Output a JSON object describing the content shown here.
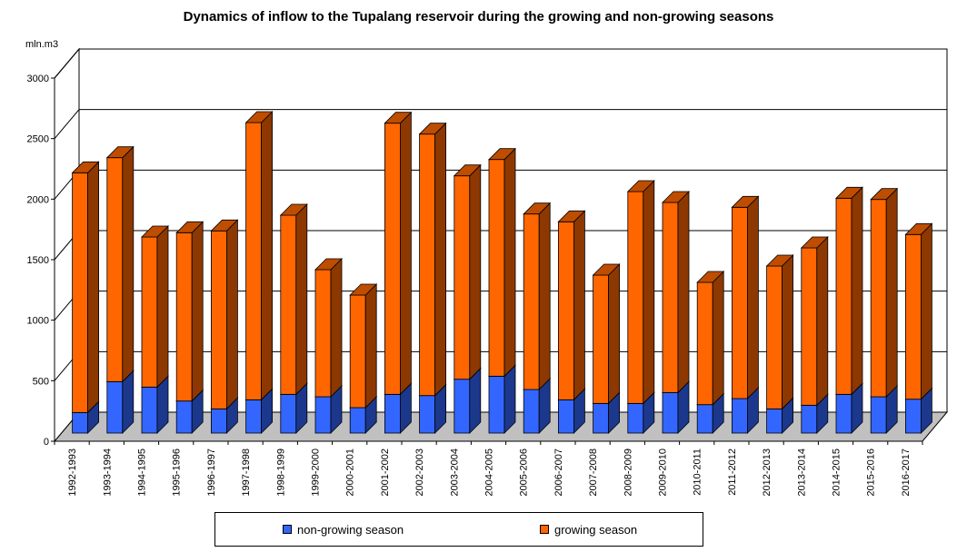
{
  "chart_data": {
    "type": "bar",
    "stacked": true,
    "three_d": true,
    "title": "Dynamics of inflow to the Tupalang reservoir during the growing and non-growing seasons",
    "ylabel": "mln.m3",
    "xlabel": "",
    "ylim": [
      0,
      3000
    ],
    "yticks": [
      0,
      500,
      1000,
      1500,
      2000,
      2500,
      3000
    ],
    "grid": true,
    "legend_position": "bottom",
    "categories": [
      "1992-1993",
      "1993-1994",
      "1994-1995",
      "1995-1996",
      "1996-1997",
      "1997-1998",
      "1998-1999",
      "1999-2000",
      "2000-2001",
      "2001-2002",
      "2002-2003",
      "2003-2004",
      "2004-2005",
      "2005-2006",
      "2006-2007",
      "2007-2008",
      "2008-2009",
      "2009-2010",
      "2010-2011",
      "2011-2012",
      "2012-2013",
      "2013-2014",
      "2014-2015",
      "2015-2016",
      "2016-2017"
    ],
    "series": [
      {
        "name": "non-growing season",
        "color": "#3366ff",
        "values": [
          170,
          425,
          380,
          265,
          200,
          275,
          320,
          300,
          210,
          320,
          310,
          445,
          470,
          360,
          275,
          245,
          245,
          335,
          235,
          285,
          200,
          230,
          320,
          300,
          280
        ]
      },
      {
        "name": "growing season",
        "color": "#ff6600",
        "values": [
          1980,
          1850,
          1240,
          1390,
          1470,
          2290,
          1480,
          1050,
          930,
          2240,
          2160,
          1680,
          1790,
          1450,
          1470,
          1060,
          1750,
          1570,
          1010,
          1580,
          1180,
          1300,
          1620,
          1630,
          1360
        ]
      }
    ]
  }
}
